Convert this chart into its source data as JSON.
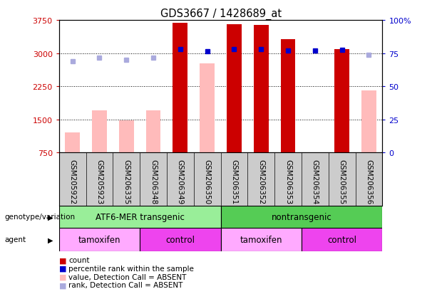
{
  "title": "GDS3667 / 1428689_at",
  "samples": [
    "GSM205922",
    "GSM205923",
    "GSM206335",
    "GSM206348",
    "GSM206349",
    "GSM206350",
    "GSM206351",
    "GSM206352",
    "GSM206353",
    "GSM206354",
    "GSM206355",
    "GSM206356"
  ],
  "count_values": [
    null,
    null,
    null,
    null,
    3680,
    null,
    3650,
    3630,
    3310,
    null,
    3090,
    null
  ],
  "count_absent_values": [
    1200,
    1700,
    1480,
    1700,
    null,
    2770,
    null,
    null,
    null,
    null,
    null,
    2160
  ],
  "percentile_values": [
    null,
    null,
    null,
    null,
    3090,
    3040,
    3090,
    3090,
    3060,
    3060,
    3080,
    null
  ],
  "percentile_absent_values": [
    2820,
    2900,
    2840,
    2900,
    null,
    null,
    null,
    null,
    null,
    null,
    null,
    2960
  ],
  "ylim_left": [
    750,
    3750
  ],
  "ylim_right": [
    0,
    100
  ],
  "yticks_left": [
    750,
    1500,
    2250,
    3000,
    3750
  ],
  "yticks_right": [
    0,
    25,
    50,
    75,
    100
  ],
  "ytick_labels_left": [
    "750",
    "1500",
    "2250",
    "3000",
    "3750"
  ],
  "ytick_labels_right": [
    "0",
    "25",
    "50",
    "75",
    "100%"
  ],
  "color_count": "#cc0000",
  "color_count_absent": "#ffbbbb",
  "color_percentile": "#0000cc",
  "color_percentile_absent": "#aaaadd",
  "bar_width": 0.55,
  "groups": [
    {
      "label": "ATF6-MER transgenic",
      "start": 0,
      "end": 6,
      "color": "#99ee99"
    },
    {
      "label": "nontransgenic",
      "start": 6,
      "end": 12,
      "color": "#55cc55"
    }
  ],
  "agents": [
    {
      "label": "tamoxifen",
      "start": 0,
      "end": 3,
      "color": "#ffaaff"
    },
    {
      "label": "control",
      "start": 3,
      "end": 6,
      "color": "#ee44ee"
    },
    {
      "label": "tamoxifen",
      "start": 6,
      "end": 9,
      "color": "#ffaaff"
    },
    {
      "label": "control",
      "start": 9,
      "end": 12,
      "color": "#ee44ee"
    }
  ],
  "legend_items": [
    {
      "label": "count",
      "color": "#cc0000"
    },
    {
      "label": "percentile rank within the sample",
      "color": "#0000cc"
    },
    {
      "label": "value, Detection Call = ABSENT",
      "color": "#ffbbbb"
    },
    {
      "label": "rank, Detection Call = ABSENT",
      "color": "#aaaadd"
    }
  ],
  "bg_color": "#ffffff",
  "plot_bg_color": "#ffffff",
  "xtick_bg_color": "#cccccc",
  "grid_color": "#000000",
  "label_color_left": "#cc0000",
  "label_color_right": "#0000cc",
  "geno_label": "genotype/variation",
  "agent_label": "agent"
}
